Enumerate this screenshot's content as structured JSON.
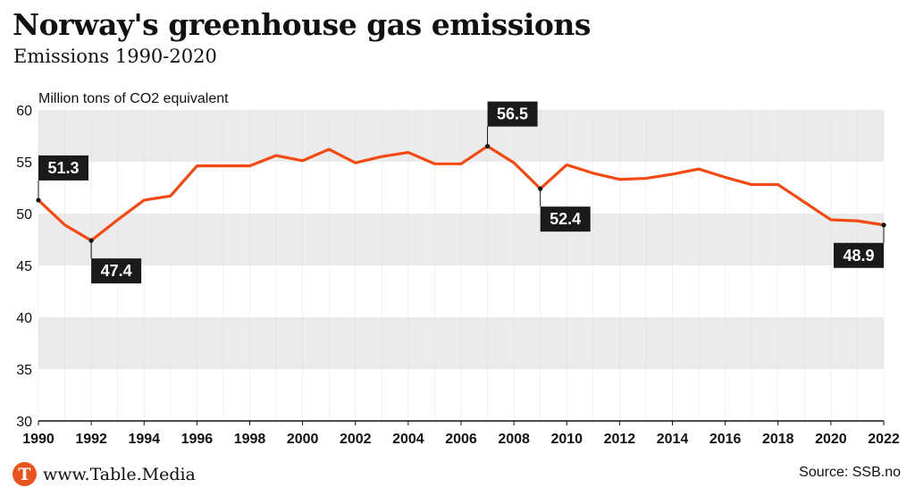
{
  "header": {
    "title": "Norway's greenhouse gas emissions",
    "subtitle": "Emissions 1990-2020"
  },
  "footer": {
    "logo_letter": "T",
    "logo_text": "www.Table.Media",
    "source": "Source: SSB.no"
  },
  "colors": {
    "line": "#f24a12",
    "band": "#ebebeb",
    "label_bg": "#1a1a1a",
    "label_text": "#ffffff"
  },
  "chart_data": {
    "type": "line",
    "ylabel": "Million tons of CO2 equivalent",
    "xlim": [
      1990,
      2022
    ],
    "ylim": [
      30,
      60
    ],
    "yticks": [
      30,
      35,
      40,
      45,
      50,
      55,
      60
    ],
    "xticks": [
      1990,
      1992,
      1994,
      1996,
      1998,
      2000,
      2002,
      2004,
      2006,
      2008,
      2010,
      2012,
      2014,
      2016,
      2018,
      2020,
      2022
    ],
    "grid": "horizontal bands",
    "series": [
      {
        "x": [
          1990,
          1991,
          1992,
          1993,
          1994,
          1995,
          1996,
          1997,
          1998,
          1999,
          2000,
          2001,
          2002,
          2003,
          2004,
          2005,
          2006,
          2007,
          2008,
          2009,
          2010,
          2011,
          2012,
          2013,
          2014,
          2015,
          2016,
          2017,
          2018,
          2019,
          2020,
          2021,
          2022
        ],
        "values": [
          51.3,
          48.9,
          47.4,
          49.4,
          51.3,
          51.7,
          54.6,
          54.6,
          54.6,
          55.6,
          55.1,
          56.2,
          54.9,
          55.5,
          55.9,
          54.8,
          54.8,
          56.5,
          54.9,
          52.4,
          54.7,
          53.9,
          53.3,
          53.4,
          53.8,
          54.3,
          53.5,
          52.8,
          52.8,
          51.1,
          49.4,
          49.3,
          48.9
        ]
      }
    ],
    "annotations": [
      {
        "x": 1990,
        "y": 51.3,
        "text": "51.3",
        "position": "above"
      },
      {
        "x": 1992,
        "y": 47.4,
        "text": "47.4",
        "position": "below"
      },
      {
        "x": 2007,
        "y": 56.5,
        "text": "56.5",
        "position": "above"
      },
      {
        "x": 2009,
        "y": 52.4,
        "text": "52.4",
        "position": "below"
      },
      {
        "x": 2022,
        "y": 48.9,
        "text": "48.9",
        "position": "below"
      }
    ]
  }
}
